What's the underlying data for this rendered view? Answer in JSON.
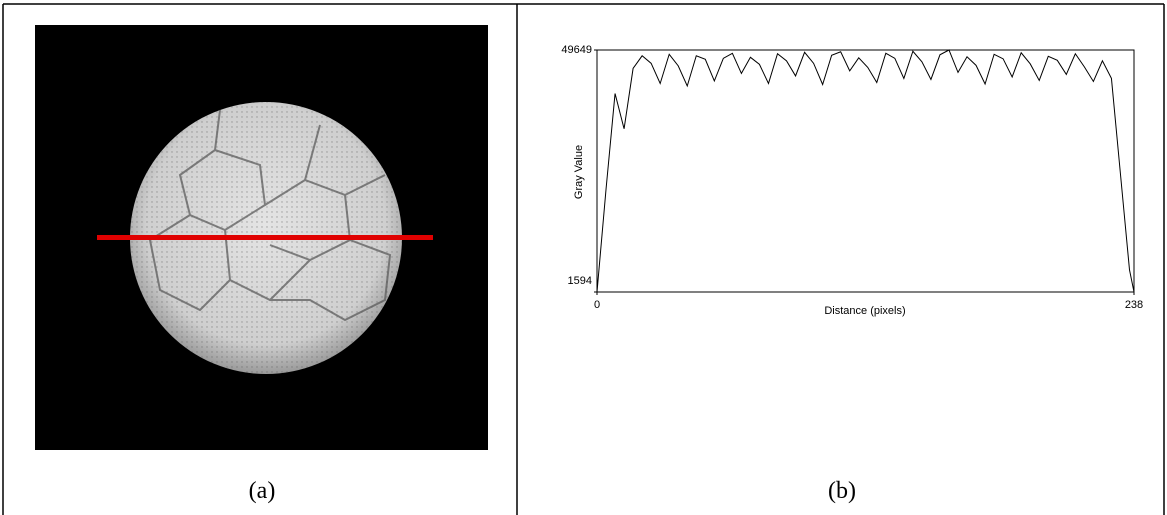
{
  "panels": [
    {
      "caption": "(a)"
    },
    {
      "caption": "(b)"
    }
  ],
  "chart_data": {
    "type": "line",
    "xlabel": "Distance (pixels)",
    "ylabel": "Gray Value",
    "x": [
      0,
      4,
      8,
      12,
      16,
      20,
      24,
      28,
      32,
      36,
      40,
      44,
      48,
      52,
      56,
      60,
      64,
      68,
      72,
      76,
      80,
      84,
      88,
      92,
      96,
      100,
      104,
      108,
      112,
      116,
      120,
      124,
      128,
      132,
      136,
      140,
      144,
      148,
      152,
      156,
      160,
      164,
      168,
      172,
      176,
      180,
      184,
      188,
      192,
      196,
      200,
      204,
      208,
      212,
      216,
      220,
      224,
      228,
      232,
      236,
      238
    ],
    "values": [
      1594,
      22000,
      41000,
      34000,
      46000,
      48500,
      47000,
      43000,
      48800,
      46500,
      42500,
      48500,
      47800,
      43500,
      48000,
      49000,
      45000,
      48200,
      46800,
      43000,
      48900,
      47500,
      44500,
      49200,
      47000,
      42800,
      48600,
      49300,
      45500,
      48100,
      46200,
      43200,
      49000,
      48000,
      44000,
      49400,
      47300,
      43800,
      48700,
      49649,
      45200,
      48300,
      46600,
      42900,
      48800,
      47900,
      44300,
      49100,
      46900,
      43600,
      48400,
      47600,
      44800,
      48900,
      46300,
      43400,
      47500,
      44000,
      25000,
      6000,
      1594
    ],
    "color": "#000000",
    "xlim": [
      0,
      238
    ],
    "xticks": [
      0,
      238
    ],
    "ylim": [
      1594,
      49649
    ],
    "yticks": [
      1594,
      49649
    ]
  }
}
